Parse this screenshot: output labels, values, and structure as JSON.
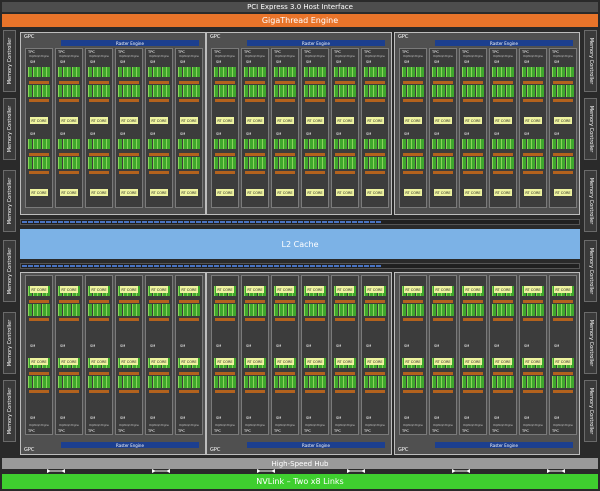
{
  "header": {
    "pci": "PCI Express 3.0 Host Interface",
    "gigathread": "GigaThread Engine"
  },
  "footer": {
    "hub": "High-Speed Hub",
    "nvlink": "NVLink – Two x8 Links"
  },
  "cache": {
    "l2": "L2 Cache"
  },
  "memory_controller_label": "Memory Controller",
  "gpc": {
    "label": "GPC",
    "raster_engine": "Raster Engine",
    "tpc_label": "TPC",
    "polymorph_engine": "PolyMorph Engine",
    "sm_label": "SM",
    "rt_core_label": "RT CORE"
  },
  "colors": {
    "background": "#2a2a2a",
    "gigathread": "#e8742a",
    "raster": "#1c3f8f",
    "l2": "#7cb2e6",
    "nvlink": "#3fcf2f",
    "hub": "#9a9a9a",
    "sm_core": "#3fa82c",
    "rt_core": "#eef39f"
  }
}
